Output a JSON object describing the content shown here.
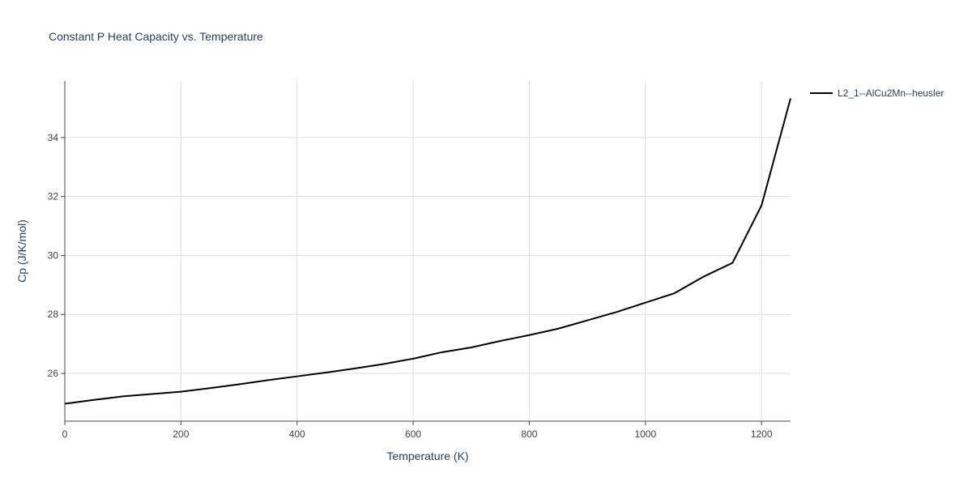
{
  "chart_data": {
    "type": "line",
    "title": "Constant P Heat Capacity vs. Temperature",
    "x_label": "Temperature (K)",
    "y_label": "Cp (J/K/mol)",
    "x": [
      0,
      50,
      100,
      150,
      200,
      250,
      300,
      350,
      400,
      450,
      500,
      550,
      600,
      650,
      700,
      750,
      800,
      850,
      900,
      950,
      1000,
      1050,
      1100,
      1150,
      1200,
      1250
    ],
    "series": [
      {
        "name": "L2_1--AlCu2Mn--heusler",
        "color": "#000000",
        "values": [
          24.97,
          25.1,
          25.22,
          25.3,
          25.38,
          25.5,
          25.63,
          25.77,
          25.9,
          26.03,
          26.17,
          26.32,
          26.5,
          26.72,
          26.88,
          27.1,
          27.3,
          27.52,
          27.8,
          28.08,
          28.4,
          28.72,
          29.28,
          29.75,
          31.7,
          35.33
        ]
      }
    ],
    "xlim": [
      0,
      1250
    ],
    "ylim": [
      24.38,
      35.92
    ],
    "xticks": [
      0,
      200,
      400,
      600,
      800,
      1000,
      1200
    ],
    "yticks": [
      26,
      28,
      30,
      32,
      34
    ],
    "grid": true,
    "legend": "right"
  }
}
